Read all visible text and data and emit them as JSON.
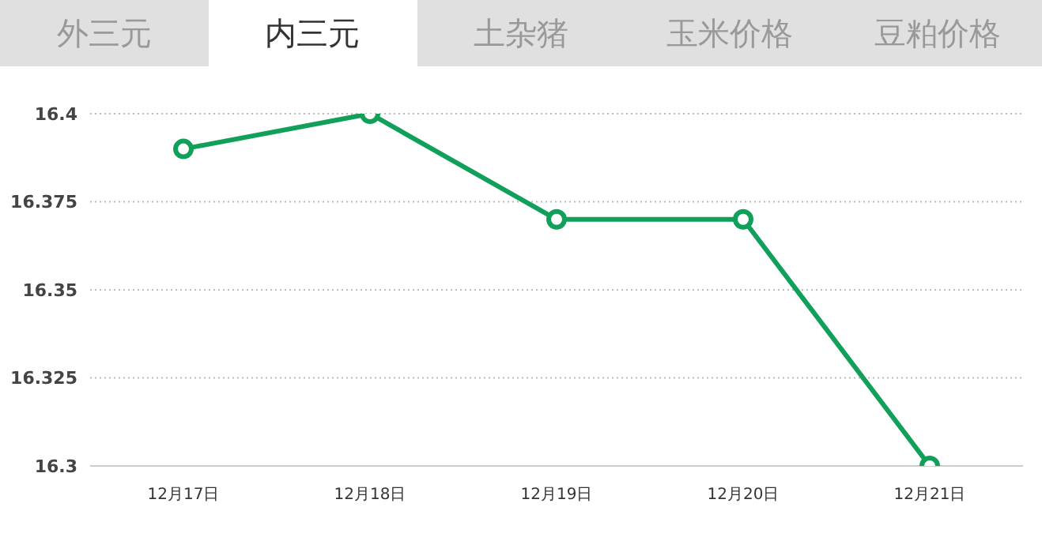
{
  "chart_data": {
    "type": "line",
    "annotations": [
      "外三元",
      "内三元",
      "土杂猪",
      "玉米价格",
      "豆粕价格"
    ],
    "categories": [
      "12月17日",
      "12月18日",
      "12月19日",
      "12月20日",
      "12月21日"
    ],
    "series": [
      {
        "color": "#11a05a",
        "values": [
          16.39,
          16.4,
          16.37,
          16.37,
          16.3
        ]
      }
    ],
    "ylim": [
      16.3,
      16.4
    ],
    "yticks": [
      16.3,
      16.325,
      16.35,
      16.375,
      16.4
    ],
    "grid": "y",
    "marker": "circle",
    "line_style": "solid"
  }
}
